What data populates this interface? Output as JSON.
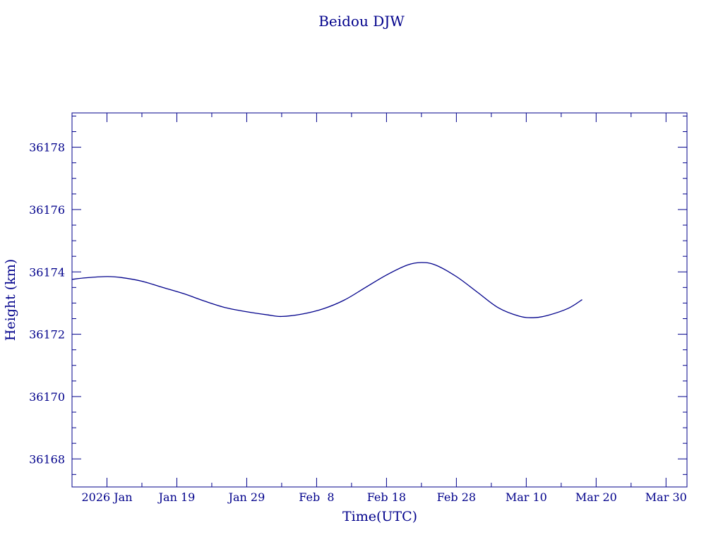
{
  "chart_data": {
    "type": "line",
    "title": "Beidou DJW",
    "xlabel": "Time(UTC)",
    "ylabel": "Height (km)",
    "color": "#00008b",
    "xlim": [
      "2026-01-04",
      "2026-04-02"
    ],
    "ylim": [
      36167.1,
      36179.1
    ],
    "x_ticks": [
      {
        "date": "2026-01-09",
        "label": "2026 Jan"
      },
      {
        "date": "2026-01-19",
        "label": "Jan 19"
      },
      {
        "date": "2026-01-29",
        "label": "Jan 29"
      },
      {
        "date": "2026-02-08",
        "label": "Feb  8"
      },
      {
        "date": "2026-02-18",
        "label": "Feb 18"
      },
      {
        "date": "2026-02-28",
        "label": "Feb 28"
      },
      {
        "date": "2026-03-10",
        "label": "Mar 10"
      },
      {
        "date": "2026-03-20",
        "label": "Mar 20"
      },
      {
        "date": "2026-03-30",
        "label": "Mar 30"
      }
    ],
    "y_ticks": [
      36168,
      36170,
      36172,
      36174,
      36176,
      36178
    ],
    "grid": false,
    "series": [
      {
        "points": [
          {
            "x": "2026-01-04",
            "y": 36173.76
          },
          {
            "x": "2026-01-06",
            "y": 36173.81
          },
          {
            "x": "2026-01-09",
            "y": 36173.85
          },
          {
            "x": "2026-01-11",
            "y": 36173.82
          },
          {
            "x": "2026-01-14",
            "y": 36173.7
          },
          {
            "x": "2026-01-17",
            "y": 36173.5
          },
          {
            "x": "2026-01-20",
            "y": 36173.3
          },
          {
            "x": "2026-01-23",
            "y": 36173.06
          },
          {
            "x": "2026-01-26",
            "y": 36172.85
          },
          {
            "x": "2026-01-29",
            "y": 36172.72
          },
          {
            "x": "2026-02-01",
            "y": 36172.62
          },
          {
            "x": "2026-02-03",
            "y": 36172.57
          },
          {
            "x": "2026-02-06",
            "y": 36172.65
          },
          {
            "x": "2026-02-09",
            "y": 36172.82
          },
          {
            "x": "2026-02-12",
            "y": 36173.1
          },
          {
            "x": "2026-02-15",
            "y": 36173.5
          },
          {
            "x": "2026-02-18",
            "y": 36173.9
          },
          {
            "x": "2026-02-21",
            "y": 36174.22
          },
          {
            "x": "2026-02-23",
            "y": 36174.3
          },
          {
            "x": "2026-02-25",
            "y": 36174.22
          },
          {
            "x": "2026-02-28",
            "y": 36173.85
          },
          {
            "x": "2026-03-03",
            "y": 36173.35
          },
          {
            "x": "2026-03-06",
            "y": 36172.85
          },
          {
            "x": "2026-03-09",
            "y": 36172.58
          },
          {
            "x": "2026-03-11",
            "y": 36172.53
          },
          {
            "x": "2026-03-13",
            "y": 36172.6
          },
          {
            "x": "2026-03-16",
            "y": 36172.83
          },
          {
            "x": "2026-03-18",
            "y": 36173.11
          }
        ]
      }
    ]
  }
}
